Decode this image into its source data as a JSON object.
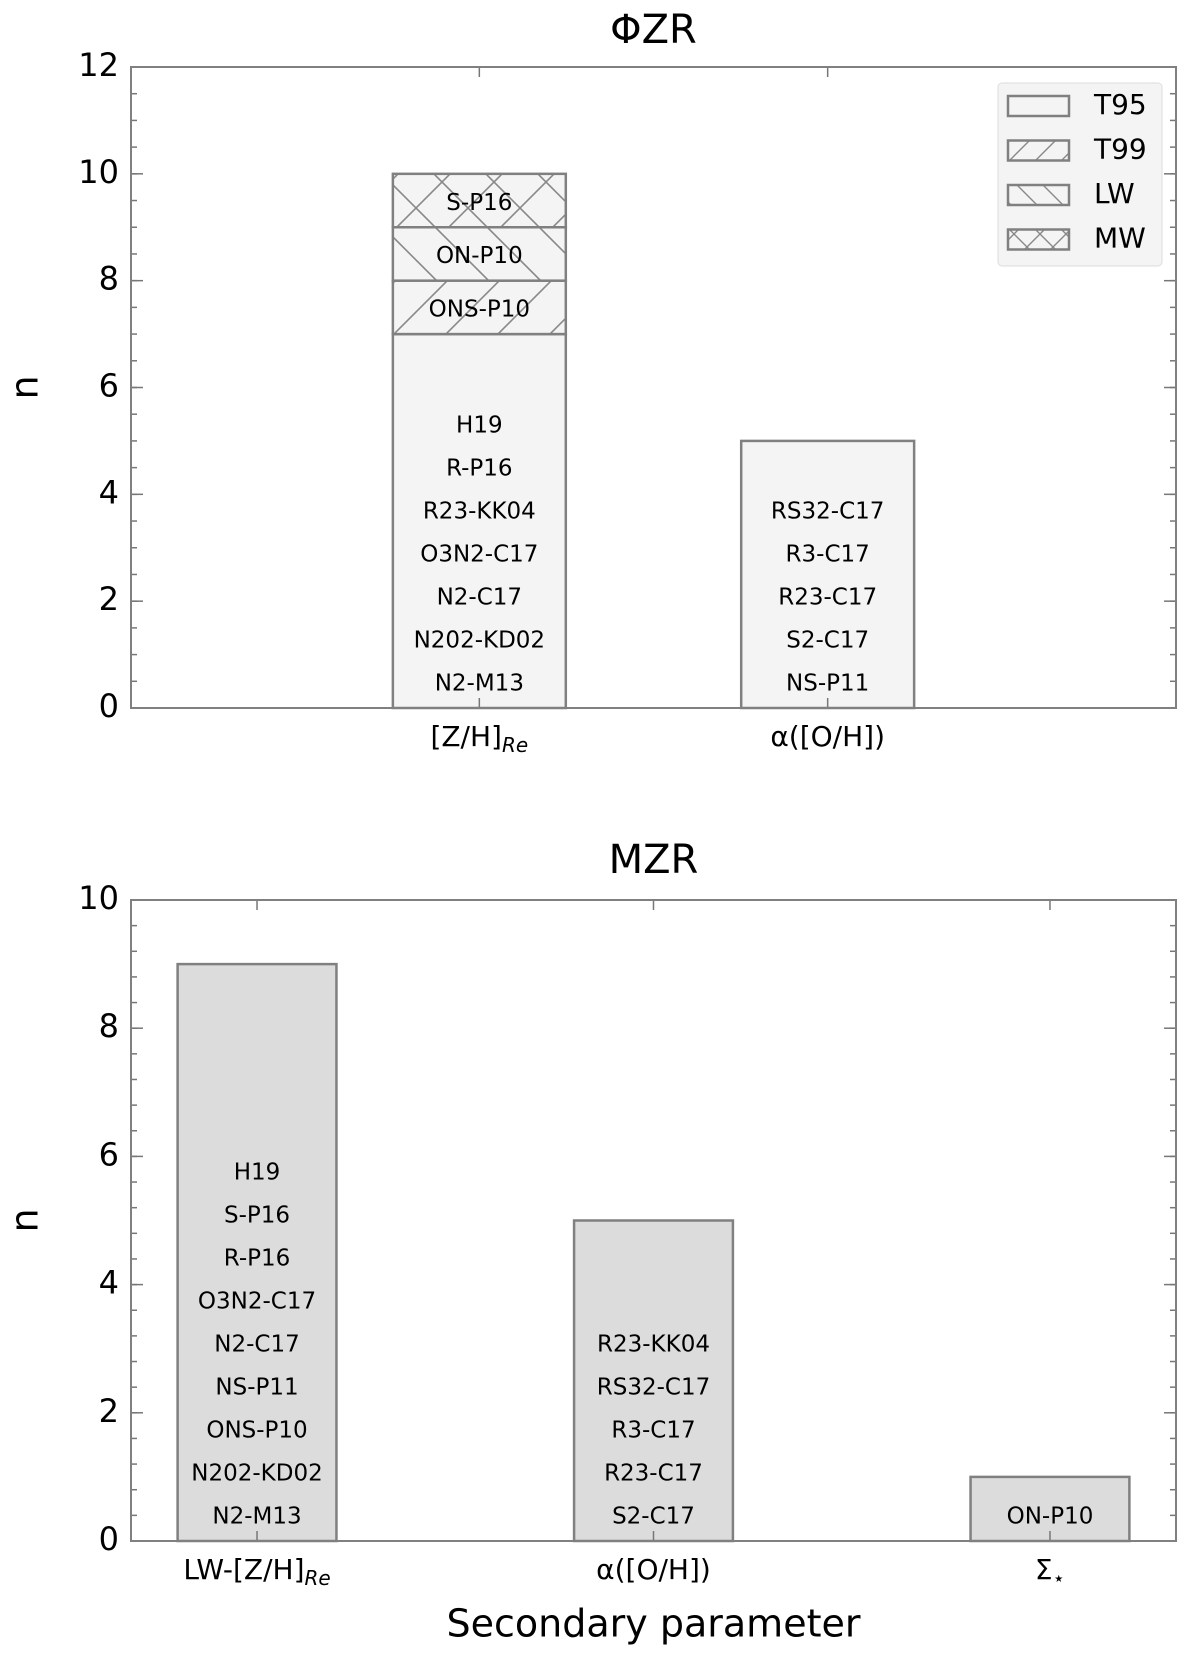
{
  "chart_data": [
    {
      "type": "bar",
      "title": "ΦZR",
      "ylabel": "n",
      "categories": [
        "[Z/H]",
        "α([O/H])"
      ],
      "category_subscripts": [
        "Re",
        null
      ],
      "stacked": true,
      "series": [
        {
          "name": "T95",
          "color": "#f4f4f4",
          "hatch": "none",
          "values": [
            7,
            5
          ],
          "bar_labels": [
            [
              "H19",
              "R-P16",
              "R23-KK04",
              "O3N2-C17",
              "N2-C17",
              "N202-KD02",
              "N2-M13"
            ],
            [
              "RS32-C17",
              "R3-C17",
              "R23-C17",
              "S2-C17",
              "NS-P11"
            ]
          ]
        },
        {
          "name": "T99",
          "color": "#f4f4f4",
          "hatch": "/",
          "values": [
            1,
            0
          ],
          "bar_labels": [
            [
              "ONS-P10"
            ],
            []
          ]
        },
        {
          "name": "LW",
          "color": "#f4f4f4",
          "hatch": "\\",
          "values": [
            1,
            0
          ],
          "bar_labels": [
            [
              "ON-P10"
            ],
            []
          ]
        },
        {
          "name": "MW",
          "color": "#f4f4f4",
          "hatch": "x",
          "values": [
            1,
            0
          ],
          "bar_labels": [
            [
              "S-P16"
            ],
            []
          ]
        }
      ],
      "ylim": [
        0,
        12
      ],
      "yticks": [
        0,
        2,
        4,
        6,
        8,
        10,
        12
      ],
      "legend": "upper right"
    },
    {
      "type": "bar",
      "title": "MZR",
      "ylabel": "n",
      "xlabel": "Secondary parameter",
      "categories": [
        "LW-[Z/H]",
        "α([O/H])",
        "Σ"
      ],
      "category_subscripts": [
        "Re",
        null,
        "⋆"
      ],
      "values": [
        9,
        5,
        1
      ],
      "color": "#dcdcdc",
      "bar_labels": [
        [
          "H19",
          "S-P16",
          "R-P16",
          "O3N2-C17",
          "N2-C17",
          "NS-P11",
          "ONS-P10",
          "N202-KD02",
          "N2-M13"
        ],
        [
          "R23-KK04",
          "RS32-C17",
          "R3-C17",
          "R23-C17",
          "S2-C17"
        ],
        [
          "ON-P10"
        ]
      ],
      "ylim": [
        0,
        10
      ],
      "yticks": [
        0,
        2,
        4,
        6,
        8,
        10
      ]
    }
  ]
}
